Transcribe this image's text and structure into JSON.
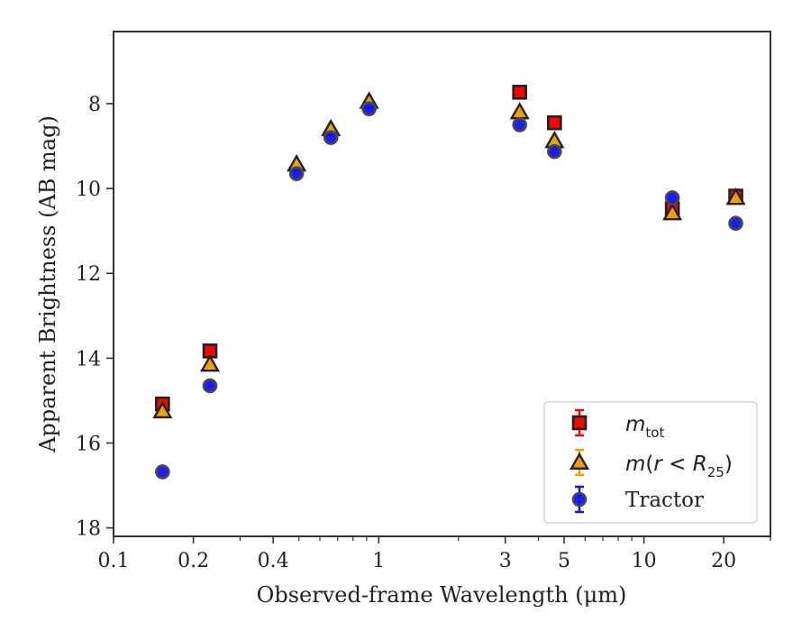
{
  "chart_data": {
    "type": "scatter",
    "xlabel": "Observed-frame Wavelength (μm)",
    "ylabel": "Apparent Brightness (AB mag)",
    "xscale": "log",
    "xlim": [
      0.1,
      30
    ],
    "ylim": [
      18.2,
      6.3
    ],
    "y_inverted": true,
    "x_ticks": [
      {
        "value": 0.1,
        "label": "0.1"
      },
      {
        "value": 0.2,
        "label": "0.2"
      },
      {
        "value": 0.4,
        "label": "0.4"
      },
      {
        "value": 1,
        "label": "1"
      },
      {
        "value": 3,
        "label": "3"
      },
      {
        "value": 5,
        "label": "5"
      },
      {
        "value": 10,
        "label": "10"
      },
      {
        "value": 20,
        "label": "20"
      }
    ],
    "y_ticks": [
      {
        "value": 8,
        "label": "8"
      },
      {
        "value": 10,
        "label": "10"
      },
      {
        "value": 12,
        "label": "12"
      },
      {
        "value": 14,
        "label": "14"
      },
      {
        "value": 16,
        "label": "16"
      },
      {
        "value": 18,
        "label": "18"
      }
    ],
    "grid": false,
    "legend_position": "bottom-right",
    "series": [
      {
        "name": "m_tot",
        "marker": "square",
        "color": "#ff0000",
        "points": [
          {
            "x": 0.153,
            "y": 15.08
          },
          {
            "x": 0.231,
            "y": 13.83
          },
          {
            "x": 3.4,
            "y": 7.73
          },
          {
            "x": 4.6,
            "y": 8.45
          },
          {
            "x": 12.8,
            "y": 10.48
          },
          {
            "x": 22.2,
            "y": 10.18
          }
        ]
      },
      {
        "name": "m(r < R25)",
        "marker": "triangle",
        "color": "#f0a000",
        "points": [
          {
            "x": 0.153,
            "y": 15.25
          },
          {
            "x": 0.231,
            "y": 14.15
          },
          {
            "x": 0.49,
            "y": 9.43
          },
          {
            "x": 0.66,
            "y": 8.6
          },
          {
            "x": 0.92,
            "y": 7.95
          },
          {
            "x": 3.4,
            "y": 8.2
          },
          {
            "x": 4.6,
            "y": 8.88
          },
          {
            "x": 12.8,
            "y": 10.58
          },
          {
            "x": 22.2,
            "y": 10.22
          }
        ]
      },
      {
        "name": "Tractor",
        "marker": "circle",
        "color": "#1010ff",
        "points": [
          {
            "x": 0.153,
            "y": 16.68
          },
          {
            "x": 0.231,
            "y": 14.65
          },
          {
            "x": 0.49,
            "y": 9.65
          },
          {
            "x": 0.66,
            "y": 8.8
          },
          {
            "x": 0.92,
            "y": 8.12
          },
          {
            "x": 3.4,
            "y": 8.5
          },
          {
            "x": 4.6,
            "y": 9.13
          },
          {
            "x": 12.8,
            "y": 10.22
          },
          {
            "x": 22.2,
            "y": 10.82
          }
        ]
      }
    ]
  }
}
